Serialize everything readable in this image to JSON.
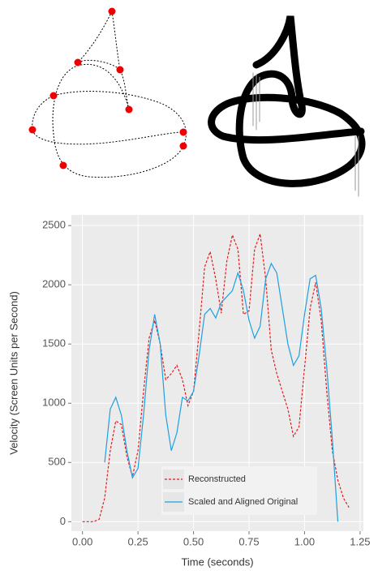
{
  "chart_data": {
    "type": "line",
    "x_label": "Time (seconds)",
    "y_label": "Velocity (Screen Units per Second)",
    "x": [
      0,
      0.025,
      0.05,
      0.075,
      0.1,
      0.125,
      0.15,
      0.175,
      0.2,
      0.225,
      0.25,
      0.275,
      0.3,
      0.325,
      0.35,
      0.375,
      0.4,
      0.425,
      0.45,
      0.475,
      0.5,
      0.525,
      0.55,
      0.575,
      0.6,
      0.625,
      0.65,
      0.675,
      0.7,
      0.725,
      0.75,
      0.775,
      0.8,
      0.825,
      0.85,
      0.875,
      0.9,
      0.925,
      0.95,
      0.975,
      1.0,
      1.025,
      1.05,
      1.075,
      1.1,
      1.125,
      1.15,
      1.175,
      1.2
    ],
    "series": [
      {
        "name": "Reconstructed",
        "color": "#e41a1c",
        "dashed": true,
        "values": [
          0,
          0,
          0,
          20,
          200,
          600,
          850,
          820,
          550,
          380,
          600,
          1100,
          1550,
          1700,
          1500,
          1200,
          1250,
          1320,
          1200,
          980,
          1100,
          1600,
          2150,
          2280,
          2050,
          1760,
          2200,
          2420,
          2300,
          1750,
          1780,
          2300,
          2430,
          2050,
          1450,
          1250,
          1100,
          950,
          720,
          800,
          1300,
          1800,
          2020,
          1700,
          1100,
          600,
          350,
          200,
          120
        ]
      },
      {
        "name": "Scaled and Aligned Original",
        "color": "#1f9fe0",
        "dashed": false,
        "values": [
          null,
          null,
          null,
          null,
          500,
          950,
          1050,
          900,
          600,
          370,
          450,
          900,
          1450,
          1750,
          1500,
          900,
          600,
          750,
          1050,
          1020,
          1100,
          1400,
          1750,
          1800,
          1720,
          1850,
          1900,
          1950,
          2100,
          1950,
          1700,
          1550,
          1650,
          2050,
          2180,
          2100,
          1800,
          1500,
          1320,
          1400,
          1750,
          2050,
          2080,
          1800,
          1300,
          700,
          0,
          null,
          null
        ]
      }
    ],
    "xlim": [
      -0.05,
      1.265
    ],
    "ylim": [
      -80,
      2590
    ],
    "xticks": [
      {
        "value": 0,
        "label": "0.00"
      },
      {
        "value": 0.25,
        "label": "0.25"
      },
      {
        "value": 0.5,
        "label": "0.50"
      },
      {
        "value": 0.75,
        "label": "0.75"
      },
      {
        "value": 1.0,
        "label": "1.00"
      },
      {
        "value": 1.25,
        "label": "1.25"
      }
    ],
    "yticks": [
      0,
      500,
      1000,
      1500,
      2000,
      2500
    ],
    "grid": true,
    "legend_position": "bottom"
  }
}
